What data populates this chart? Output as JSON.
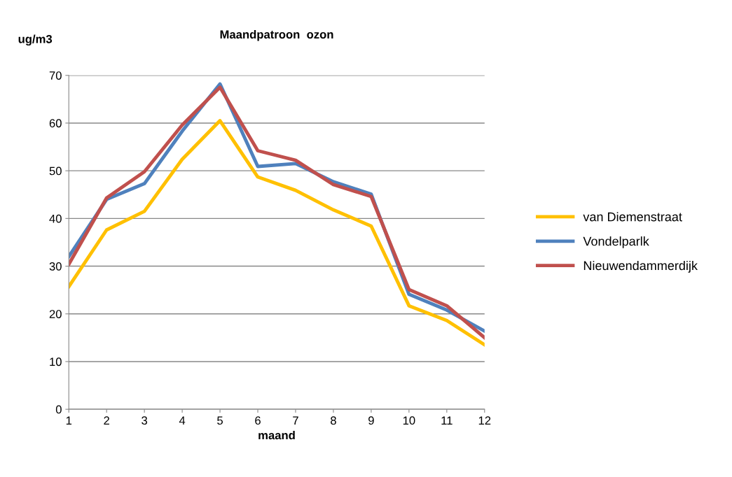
{
  "chart_data": {
    "type": "line",
    "title": "Maandpatroon  ozon",
    "xlabel": "maand",
    "ylabel": "ug/m3",
    "x": [
      1,
      2,
      3,
      4,
      5,
      6,
      7,
      8,
      9,
      10,
      11,
      12
    ],
    "series": [
      {
        "name": "van Diemenstraat",
        "color": "#ffc000",
        "values": [
          25.7,
          37.6,
          41.5,
          52.4,
          60.5,
          48.7,
          45.9,
          41.8,
          38.4,
          21.7,
          18.6,
          13.5
        ]
      },
      {
        "name": "Vondelparlk",
        "color": "#4f81bd",
        "values": [
          32.0,
          44.0,
          47.3,
          58.3,
          68.2,
          50.9,
          51.5,
          47.7,
          45.1,
          24.1,
          20.8,
          16.4
        ]
      },
      {
        "name": "Nieuwendammerdijk",
        "color": "#c0504d",
        "values": [
          30.4,
          44.3,
          49.8,
          59.6,
          67.5,
          54.2,
          52.2,
          47.1,
          44.6,
          25.1,
          21.7,
          15.0
        ]
      }
    ],
    "xlim": [
      1,
      12
    ],
    "xticks": [
      1,
      2,
      3,
      4,
      5,
      6,
      7,
      8,
      9,
      10,
      11,
      12
    ],
    "ylim": [
      0,
      70
    ],
    "yticks": [
      0,
      10,
      20,
      30,
      40,
      50,
      60,
      70
    ],
    "grid": "y",
    "legend": "right",
    "marker": "none",
    "line_style": "solid"
  }
}
